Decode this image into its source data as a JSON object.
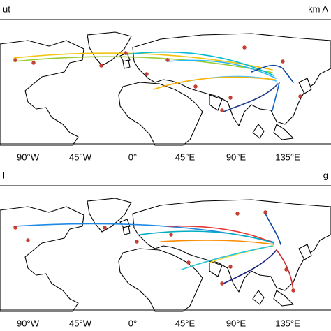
{
  "panels": [
    {
      "title_left": "ut",
      "title_right": "km A",
      "lon_labels": [
        "90°W",
        "45°W",
        "0°",
        "45°E",
        "90°E",
        "135°E"
      ]
    },
    {
      "title_left": "l",
      "title_right": "g",
      "lon_labels": [
        "90°W",
        "45°W",
        "0°",
        "45°E",
        "90°E",
        "135°E"
      ]
    }
  ]
}
